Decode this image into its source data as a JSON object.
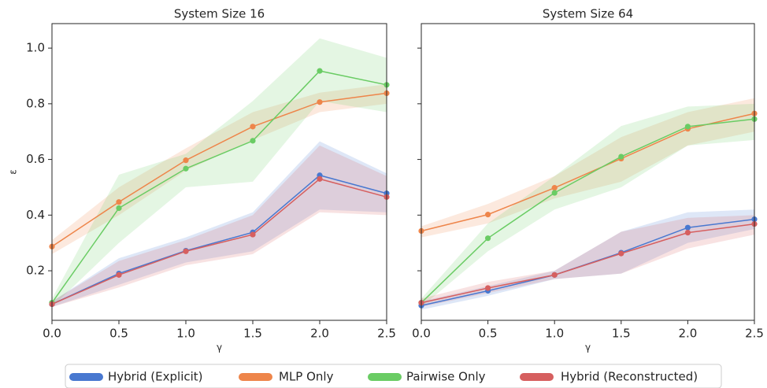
{
  "chart_data": [
    {
      "type": "line",
      "title": "System Size 16",
      "x_label": "γ",
      "y_label": "ε",
      "x": [
        0,
        0.5,
        1,
        1.5,
        2,
        2.5
      ],
      "xlim": [
        0,
        2.5
      ],
      "ylim": [
        0.022,
        1.088
      ],
      "xticks": [
        {
          "value": 0,
          "label": "0.0"
        },
        {
          "value": 0.5,
          "label": "0.5"
        },
        {
          "value": 1,
          "label": "1.0"
        },
        {
          "value": 1.5,
          "label": "1.5"
        },
        {
          "value": 2,
          "label": "2.0"
        },
        {
          "value": 2.5,
          "label": "2.5"
        }
      ],
      "yticks": [
        0.2,
        0.4,
        0.6,
        0.8,
        {
          "value": 1,
          "label": "1.0"
        }
      ],
      "series": [
        {
          "name": "Hybrid (Explicit)",
          "color": "#4878d0",
          "values": [
            0.08,
            0.19,
            0.272,
            0.338,
            0.543,
            0.478
          ],
          "lower": [
            0.07,
            0.15,
            0.23,
            0.27,
            0.42,
            0.41
          ],
          "upper": [
            0.09,
            0.245,
            0.32,
            0.41,
            0.665,
            0.55
          ]
        },
        {
          "name": "MLP Only",
          "color": "#ee854a",
          "values": [
            0.287,
            0.447,
            0.597,
            0.718,
            0.806,
            0.838
          ],
          "lower": [
            0.26,
            0.4,
            0.56,
            0.67,
            0.77,
            0.8
          ],
          "upper": [
            0.31,
            0.5,
            0.64,
            0.77,
            0.84,
            0.87
          ]
        },
        {
          "name": "Pairwise Only",
          "color": "#6acc64",
          "values": [
            0.085,
            0.425,
            0.567,
            0.667,
            0.918,
            0.868
          ],
          "lower": [
            0.07,
            0.3,
            0.5,
            0.52,
            0.81,
            0.77
          ],
          "upper": [
            0.1,
            0.545,
            0.62,
            0.81,
            1.035,
            0.965
          ]
        },
        {
          "name": "Hybrid (Reconstructed)",
          "color": "#d65f5f",
          "values": [
            0.08,
            0.185,
            0.27,
            0.33,
            0.53,
            0.465
          ],
          "lower": [
            0.07,
            0.14,
            0.22,
            0.26,
            0.41,
            0.4
          ],
          "upper": [
            0.09,
            0.235,
            0.31,
            0.4,
            0.65,
            0.54
          ]
        }
      ]
    },
    {
      "type": "line",
      "title": "System Size 64",
      "x_label": "γ",
      "x": [
        0,
        0.5,
        1,
        1.5,
        2,
        2.5
      ],
      "xlim": [
        0,
        2.5
      ],
      "ylim": [
        0.022,
        1.088
      ],
      "xticks": [
        {
          "value": 0,
          "label": "0.0"
        },
        {
          "value": 0.5,
          "label": "0.5"
        },
        {
          "value": 1,
          "label": "1.0"
        },
        {
          "value": 1.5,
          "label": "1.5"
        },
        {
          "value": 2,
          "label": "2.0"
        },
        {
          "value": 2.5,
          "label": "2.5"
        }
      ],
      "series": [
        {
          "name": "Hybrid (Explicit)",
          "color": "#4878d0",
          "values": [
            0.075,
            0.128,
            0.185,
            0.265,
            0.355,
            0.385
          ],
          "lower": [
            0.06,
            0.11,
            0.17,
            0.19,
            0.3,
            0.35
          ],
          "upper": [
            0.09,
            0.145,
            0.2,
            0.34,
            0.41,
            0.42
          ]
        },
        {
          "name": "MLP Only",
          "color": "#ee854a",
          "values": [
            0.343,
            0.402,
            0.498,
            0.603,
            0.71,
            0.765
          ],
          "lower": [
            0.32,
            0.37,
            0.46,
            0.52,
            0.65,
            0.7
          ],
          "upper": [
            0.36,
            0.44,
            0.54,
            0.68,
            0.77,
            0.82
          ]
        },
        {
          "name": "Pairwise Only",
          "color": "#6acc64",
          "values": [
            0.085,
            0.317,
            0.48,
            0.61,
            0.718,
            0.745
          ],
          "lower": [
            0.07,
            0.27,
            0.42,
            0.5,
            0.65,
            0.67
          ],
          "upper": [
            0.1,
            0.37,
            0.54,
            0.72,
            0.79,
            0.8
          ]
        },
        {
          "name": "Hybrid (Reconstructed)",
          "color": "#d65f5f",
          "values": [
            0.085,
            0.138,
            0.185,
            0.262,
            0.337,
            0.368
          ],
          "lower": [
            0.07,
            0.12,
            0.17,
            0.19,
            0.28,
            0.33
          ],
          "upper": [
            0.1,
            0.16,
            0.2,
            0.34,
            0.39,
            0.4
          ]
        }
      ]
    }
  ]
}
